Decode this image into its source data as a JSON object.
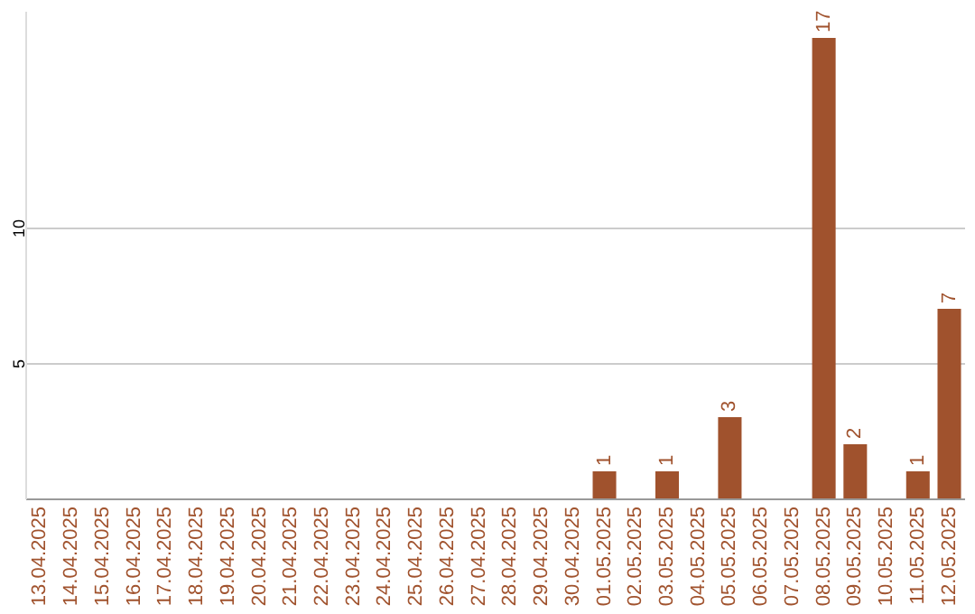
{
  "chart_data": {
    "type": "bar",
    "categories": [
      "13.04.2025",
      "14.04.2025",
      "15.04.2025",
      "16.04.2025",
      "17.04.2025",
      "18.04.2025",
      "19.04.2025",
      "20.04.2025",
      "21.04.2025",
      "22.04.2025",
      "23.04.2025",
      "24.04.2025",
      "25.04.2025",
      "26.04.2025",
      "27.04.2025",
      "28.04.2025",
      "29.04.2025",
      "30.04.2025",
      "01.05.2025",
      "02.05.2025",
      "03.05.2025",
      "04.05.2025",
      "05.05.2025",
      "06.05.2025",
      "07.05.2025",
      "08.05.2025",
      "09.05.2025",
      "10.05.2025",
      "11.05.2025",
      "12.05.2025"
    ],
    "values": [
      0,
      0,
      0,
      0,
      0,
      0,
      0,
      0,
      0,
      0,
      0,
      0,
      0,
      0,
      0,
      0,
      0,
      0,
      1,
      0,
      1,
      0,
      3,
      0,
      0,
      17,
      2,
      0,
      1,
      7
    ],
    "value_labels": [
      null,
      null,
      null,
      null,
      null,
      null,
      null,
      null,
      null,
      null,
      null,
      null,
      null,
      null,
      null,
      null,
      null,
      null,
      "1",
      null,
      "1",
      null,
      "3",
      null,
      null,
      "17",
      "2",
      null,
      "1",
      "7"
    ],
    "color": "#a0522d",
    "ylim": [
      0,
      18
    ],
    "yticks": [
      5,
      10
    ],
    "grid": "y"
  }
}
